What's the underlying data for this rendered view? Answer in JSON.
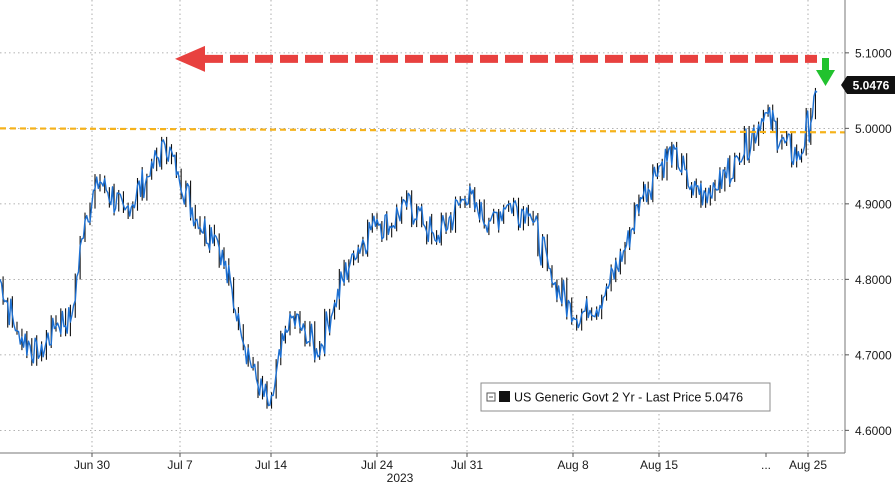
{
  "chart_data": {
    "type": "line",
    "title": "",
    "xlabel": "",
    "ylabel": "",
    "year_label": "2023",
    "x_ticks": [
      "Jun 30",
      "Jul 7",
      "Jul 14",
      "Jul 24",
      "Jul 31",
      "Aug 8",
      "Aug 15",
      "...",
      "Aug 25"
    ],
    "y_ticks": [
      "4.6000",
      "4.7000",
      "4.8000",
      "4.9000",
      "5.0000",
      "5.1000"
    ],
    "ylim": [
      4.57,
      5.17
    ],
    "grid": "horizontal dotted",
    "legend_position": "bottom-right",
    "reference_line": {
      "y": 5.0,
      "style": "dashed",
      "color": "#f5b21b"
    },
    "highlight_arrow": {
      "from_y": 5.092,
      "direction": "left",
      "color": "#e8413f"
    },
    "down_arrow_color": "#21c22e",
    "last_price": "5.0476",
    "series": [
      {
        "name": "US Generic Govt 2 Yr - Last Price 5.0476",
        "color": "#1c6fd1",
        "x": [
          "Jun 22",
          "Jun 23",
          "Jun 26",
          "Jun 27",
          "Jun 28",
          "Jun 29",
          "Jun 30",
          "Jul 3",
          "Jul 5",
          "Jul 6",
          "Jul 7",
          "Jul 10",
          "Jul 11",
          "Jul 12",
          "Jul 13",
          "Jul 14",
          "Jul 17",
          "Jul 18",
          "Jul 19",
          "Jul 20",
          "Jul 21",
          "Jul 24",
          "Jul 25",
          "Jul 26",
          "Jul 27",
          "Jul 28",
          "Jul 31",
          "Aug 1",
          "Aug 2",
          "Aug 3",
          "Aug 4",
          "Aug 7",
          "Aug 8",
          "Aug 9",
          "Aug 10",
          "Aug 11",
          "Aug 14",
          "Aug 15",
          "Aug 16",
          "Aug 17",
          "Aug 18",
          "Aug 21",
          "Aug 22",
          "Aug 23",
          "Aug 24",
          "Aug 25"
        ],
        "values": [
          4.8,
          4.73,
          4.7,
          4.74,
          4.75,
          4.88,
          4.93,
          4.89,
          4.94,
          4.98,
          4.94,
          4.87,
          4.86,
          4.74,
          4.66,
          4.63,
          4.75,
          4.73,
          4.7,
          4.76,
          4.83,
          4.88,
          4.87,
          4.9,
          4.89,
          4.85,
          4.91,
          4.89,
          4.88,
          4.9,
          4.89,
          4.8,
          4.75,
          4.76,
          4.78,
          4.84,
          4.91,
          4.95,
          4.97,
          4.92,
          4.92,
          4.96,
          5.02,
          4.98,
          4.96,
          5.0476
        ]
      }
    ]
  },
  "colors": {
    "series": "#1c6fd1",
    "candle": "#111111",
    "grid": "#9a9a9a",
    "last_price_badge": "#111111"
  }
}
